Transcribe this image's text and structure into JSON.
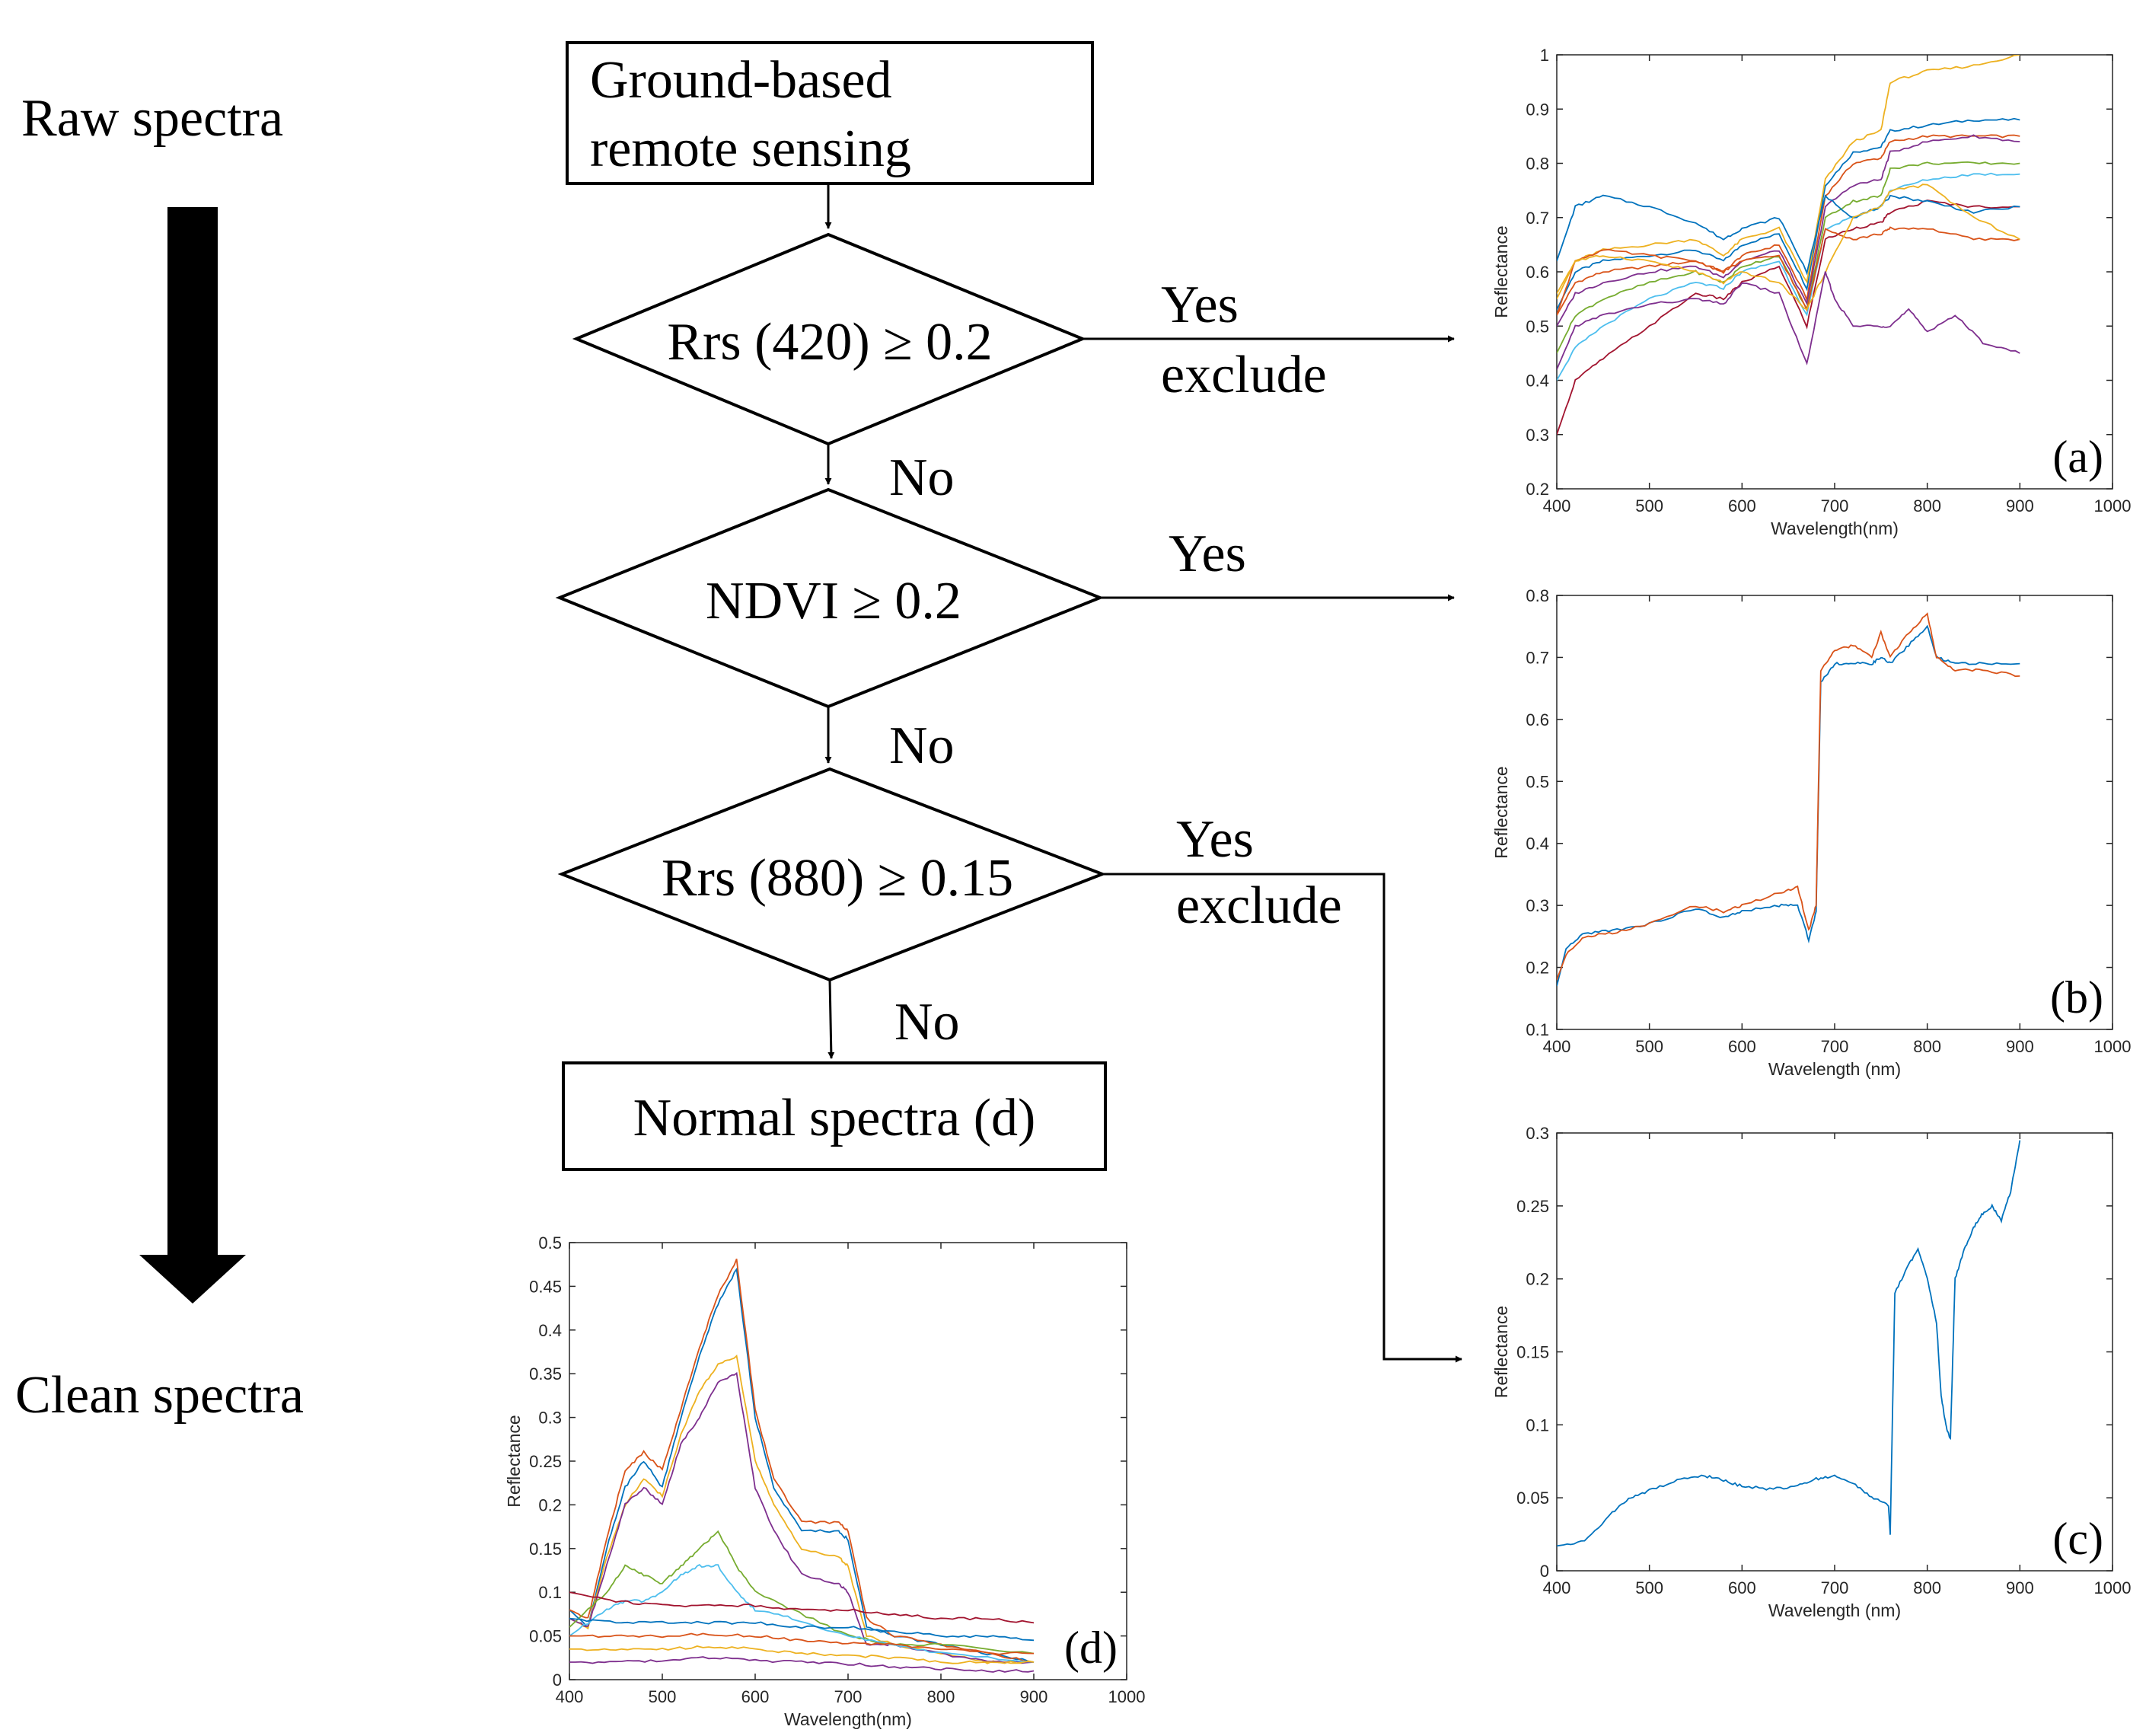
{
  "side": {
    "top_label": "Raw spectra",
    "bottom_label": "Clean spectra"
  },
  "flow": {
    "start": [
      "Ground-based",
      "remote sensing"
    ],
    "decision1": "Rrs (420) ≥ 0.2",
    "decision2": "NDVI ≥ 0.2",
    "decision3": "Rrs (880) ≥ 0.15",
    "end": "Normal spectra (d)",
    "yes1": "Yes",
    "exclude1": "exclude",
    "yes2": "Yes",
    "yes3": "Yes",
    "exclude3": "exclude",
    "no1": "No",
    "no2": "No",
    "no3": "No"
  },
  "colors": {
    "line": "#000000",
    "axis": "#262626",
    "palette": [
      "#0072BD",
      "#D95319",
      "#EDB120",
      "#7E2F8E",
      "#77AC30",
      "#4DBEEE",
      "#A2142F"
    ]
  },
  "chart_data": [
    {
      "id": "a",
      "type": "line",
      "panel_label": "(a)",
      "xlabel": "Wavelength(nm)",
      "ylabel": "Reflectance",
      "xlim": [
        400,
        1000
      ],
      "ylim": [
        0.2,
        1
      ],
      "xticks": [
        400,
        500,
        600,
        700,
        800,
        900,
        1000
      ],
      "yticks": [
        "0.2",
        "0.3",
        "0.4",
        "0.5",
        "0.6",
        "0.7",
        "0.8",
        "0.9",
        "1"
      ],
      "series": [
        {
          "x": [
            400,
            420,
            450,
            500,
            550,
            580,
            600,
            640,
            670,
            690,
            720,
            750,
            760,
            800,
            850,
            900
          ],
          "y": [
            0.53,
            0.6,
            0.62,
            0.63,
            0.64,
            0.62,
            0.65,
            0.67,
            0.57,
            0.76,
            0.82,
            0.83,
            0.86,
            0.87,
            0.88,
            0.88
          ]
        },
        {
          "x": [
            400,
            420,
            450,
            500,
            550,
            580,
            600,
            640,
            670,
            690,
            720,
            750,
            760,
            800,
            850,
            900
          ],
          "y": [
            0.52,
            0.58,
            0.6,
            0.61,
            0.62,
            0.6,
            0.63,
            0.65,
            0.55,
            0.74,
            0.8,
            0.81,
            0.84,
            0.85,
            0.85,
            0.85
          ]
        },
        {
          "x": [
            400,
            420,
            450,
            500,
            550,
            580,
            600,
            640,
            670,
            690,
            720,
            750,
            760,
            800,
            850,
            900
          ],
          "y": [
            0.55,
            0.62,
            0.64,
            0.65,
            0.66,
            0.63,
            0.66,
            0.68,
            0.58,
            0.77,
            0.84,
            0.86,
            0.95,
            0.97,
            0.98,
            1.0
          ]
        },
        {
          "x": [
            400,
            420,
            450,
            500,
            550,
            580,
            600,
            640,
            670,
            690,
            720,
            750,
            760,
            800,
            850,
            900
          ],
          "y": [
            0.5,
            0.56,
            0.58,
            0.6,
            0.61,
            0.59,
            0.62,
            0.64,
            0.54,
            0.72,
            0.76,
            0.77,
            0.82,
            0.84,
            0.85,
            0.84
          ]
        },
        {
          "x": [
            400,
            420,
            450,
            500,
            550,
            580,
            600,
            640,
            670,
            690,
            720,
            750,
            760,
            800,
            850,
            900
          ],
          "y": [
            0.45,
            0.52,
            0.55,
            0.58,
            0.6,
            0.58,
            0.61,
            0.63,
            0.53,
            0.7,
            0.73,
            0.74,
            0.79,
            0.8,
            0.8,
            0.8
          ]
        },
        {
          "x": [
            400,
            420,
            450,
            500,
            550,
            580,
            600,
            640,
            670,
            690,
            720,
            750,
            760,
            800,
            850,
            900
          ],
          "y": [
            0.4,
            0.46,
            0.5,
            0.55,
            0.58,
            0.57,
            0.6,
            0.62,
            0.52,
            0.68,
            0.7,
            0.72,
            0.75,
            0.77,
            0.78,
            0.78
          ]
        },
        {
          "x": [
            400,
            420,
            450,
            500,
            550,
            580,
            600,
            640,
            670,
            690,
            720,
            750,
            760,
            800,
            850,
            900
          ],
          "y": [
            0.3,
            0.4,
            0.44,
            0.5,
            0.56,
            0.55,
            0.58,
            0.61,
            0.5,
            0.66,
            0.68,
            0.69,
            0.71,
            0.73,
            0.72,
            0.72
          ]
        },
        {
          "x": [
            400,
            420,
            450,
            500,
            550,
            580,
            600,
            640,
            670,
            690,
            720,
            750,
            760,
            800,
            850,
            900
          ],
          "y": [
            0.62,
            0.72,
            0.74,
            0.72,
            0.69,
            0.66,
            0.68,
            0.7,
            0.6,
            0.74,
            0.7,
            0.72,
            0.74,
            0.73,
            0.71,
            0.72
          ]
        },
        {
          "x": [
            400,
            420,
            450,
            500,
            550,
            580,
            600,
            640,
            670,
            690,
            720,
            750,
            760,
            800,
            850,
            900
          ],
          "y": [
            0.52,
            0.62,
            0.64,
            0.63,
            0.62,
            0.6,
            0.62,
            0.63,
            0.53,
            0.68,
            0.66,
            0.67,
            0.68,
            0.68,
            0.66,
            0.66
          ]
        },
        {
          "x": [
            400,
            420,
            450,
            500,
            550,
            580,
            600,
            640,
            670,
            690,
            720,
            750,
            760,
            800,
            850,
            900
          ],
          "y": [
            0.56,
            0.62,
            0.63,
            0.62,
            0.6,
            0.58,
            0.6,
            0.58,
            0.53,
            0.6,
            0.7,
            0.72,
            0.75,
            0.76,
            0.7,
            0.66
          ]
        },
        {
          "x": [
            400,
            420,
            450,
            500,
            550,
            580,
            600,
            640,
            670,
            690,
            700,
            720,
            750,
            760,
            780,
            800,
            830,
            860,
            900
          ],
          "y": [
            0.42,
            0.5,
            0.52,
            0.54,
            0.55,
            0.54,
            0.58,
            0.56,
            0.43,
            0.6,
            0.55,
            0.5,
            0.5,
            0.5,
            0.53,
            0.49,
            0.52,
            0.47,
            0.45
          ]
        }
      ]
    },
    {
      "id": "b",
      "type": "line",
      "panel_label": "(b)",
      "xlabel": "Wavelength (nm)",
      "ylabel": "Reflectance",
      "xlim": [
        400,
        1000
      ],
      "ylim": [
        0.1,
        0.8
      ],
      "xticks": [
        400,
        500,
        600,
        700,
        800,
        900,
        1000
      ],
      "yticks": [
        "0.1",
        "0.2",
        "0.3",
        "0.4",
        "0.5",
        "0.6",
        "0.7",
        "0.8"
      ],
      "series": [
        {
          "x": [
            400,
            410,
            430,
            460,
            500,
            550,
            580,
            600,
            640,
            660,
            672,
            680,
            685,
            700,
            720,
            740,
            750,
            760,
            780,
            800,
            810,
            830,
            860,
            900
          ],
          "y": [
            0.17,
            0.23,
            0.255,
            0.26,
            0.27,
            0.295,
            0.28,
            0.29,
            0.3,
            0.3,
            0.245,
            0.29,
            0.66,
            0.69,
            0.69,
            0.69,
            0.7,
            0.69,
            0.72,
            0.75,
            0.7,
            0.69,
            0.69,
            0.69
          ]
        },
        {
          "x": [
            400,
            410,
            430,
            460,
            500,
            550,
            580,
            600,
            640,
            660,
            672,
            680,
            685,
            700,
            720,
            740,
            750,
            760,
            780,
            800,
            810,
            830,
            860,
            900
          ],
          "y": [
            0.18,
            0.22,
            0.25,
            0.255,
            0.27,
            0.3,
            0.29,
            0.3,
            0.32,
            0.33,
            0.26,
            0.3,
            0.68,
            0.71,
            0.72,
            0.7,
            0.74,
            0.7,
            0.74,
            0.77,
            0.7,
            0.68,
            0.68,
            0.67
          ]
        }
      ]
    },
    {
      "id": "c",
      "type": "line",
      "panel_label": "(c)",
      "xlabel": "Wavelength (nm)",
      "ylabel": "Reflectance",
      "xlim": [
        400,
        1000
      ],
      "ylim": [
        0,
        0.3
      ],
      "xticks": [
        400,
        500,
        600,
        700,
        800,
        900,
        1000
      ],
      "yticks": [
        "0",
        "0.05",
        "0.1",
        "0.15",
        "0.2",
        "0.25",
        "0.3"
      ],
      "series": [
        {
          "x": [
            400,
            430,
            460,
            480,
            500,
            530,
            560,
            580,
            600,
            630,
            660,
            680,
            700,
            720,
            740,
            758,
            760,
            765,
            780,
            790,
            800,
            810,
            815,
            820,
            825,
            830,
            840,
            850,
            860,
            870,
            880,
            890,
            900
          ],
          "y": [
            0.017,
            0.02,
            0.04,
            0.05,
            0.055,
            0.062,
            0.065,
            0.062,
            0.058,
            0.056,
            0.058,
            0.063,
            0.065,
            0.06,
            0.05,
            0.045,
            0.025,
            0.19,
            0.21,
            0.22,
            0.2,
            0.17,
            0.12,
            0.1,
            0.09,
            0.2,
            0.22,
            0.235,
            0.245,
            0.25,
            0.24,
            0.26,
            0.295
          ]
        }
      ]
    },
    {
      "id": "d",
      "type": "line",
      "panel_label": "(d)",
      "xlabel": "Wavelength(nm)",
      "ylabel": "Reflectance",
      "xlim": [
        400,
        1000
      ],
      "ylim": [
        0,
        0.5
      ],
      "xticks": [
        400,
        500,
        600,
        700,
        800,
        900,
        1000
      ],
      "yticks": [
        "0",
        "0.05",
        "0.1",
        "0.15",
        "0.2",
        "0.25",
        "0.3",
        "0.35",
        "0.4",
        "0.45",
        "0.5"
      ],
      "series": [
        {
          "x": [
            400,
            420,
            440,
            460,
            480,
            500,
            520,
            540,
            560,
            580,
            600,
            620,
            650,
            690,
            700,
            720,
            750,
            800,
            850,
            900
          ],
          "y": [
            0.08,
            0.06,
            0.15,
            0.22,
            0.25,
            0.22,
            0.3,
            0.37,
            0.43,
            0.47,
            0.3,
            0.22,
            0.17,
            0.17,
            0.16,
            0.06,
            0.05,
            0.04,
            0.03,
            0.02
          ]
        },
        {
          "x": [
            400,
            420,
            440,
            460,
            480,
            500,
            520,
            540,
            560,
            580,
            600,
            620,
            650,
            690,
            700,
            720,
            750,
            800,
            850,
            900
          ],
          "y": [
            0.08,
            0.07,
            0.16,
            0.24,
            0.26,
            0.24,
            0.31,
            0.38,
            0.44,
            0.48,
            0.31,
            0.23,
            0.18,
            0.18,
            0.17,
            0.07,
            0.05,
            0.04,
            0.03,
            0.02
          ]
        },
        {
          "x": [
            400,
            420,
            440,
            460,
            480,
            500,
            520,
            540,
            560,
            580,
            600,
            620,
            650,
            690,
            700,
            720,
            750,
            800,
            850,
            900
          ],
          "y": [
            0.07,
            0.06,
            0.14,
            0.2,
            0.23,
            0.21,
            0.28,
            0.33,
            0.36,
            0.37,
            0.25,
            0.2,
            0.15,
            0.14,
            0.13,
            0.05,
            0.04,
            0.03,
            0.02,
            0.02
          ]
        },
        {
          "x": [
            400,
            420,
            440,
            460,
            480,
            500,
            520,
            540,
            560,
            580,
            600,
            620,
            650,
            690,
            700,
            720,
            750,
            800,
            850,
            900
          ],
          "y": [
            0.07,
            0.06,
            0.13,
            0.2,
            0.22,
            0.2,
            0.27,
            0.3,
            0.34,
            0.35,
            0.22,
            0.17,
            0.12,
            0.11,
            0.1,
            0.04,
            0.04,
            0.03,
            0.02,
            0.02
          ]
        },
        {
          "x": [
            400,
            440,
            460,
            480,
            500,
            520,
            540,
            560,
            580,
            600,
            640,
            700,
            750,
            800,
            900
          ],
          "y": [
            0.06,
            0.1,
            0.13,
            0.12,
            0.11,
            0.13,
            0.15,
            0.17,
            0.13,
            0.1,
            0.08,
            0.05,
            0.04,
            0.04,
            0.03
          ]
        },
        {
          "x": [
            400,
            440,
            460,
            480,
            500,
            520,
            540,
            560,
            580,
            600,
            640,
            700,
            750,
            800,
            900
          ],
          "y": [
            0.05,
            0.08,
            0.09,
            0.09,
            0.1,
            0.12,
            0.13,
            0.13,
            0.1,
            0.08,
            0.07,
            0.05,
            0.04,
            0.03,
            0.02
          ]
        },
        {
          "x": [
            400,
            450,
            500,
            550,
            600,
            650,
            700,
            750,
            800,
            850,
            900
          ],
          "y": [
            0.1,
            0.09,
            0.085,
            0.085,
            0.085,
            0.08,
            0.08,
            0.075,
            0.07,
            0.07,
            0.065
          ]
        },
        {
          "x": [
            400,
            450,
            500,
            550,
            600,
            650,
            700,
            750,
            800,
            850,
            900
          ],
          "y": [
            0.07,
            0.065,
            0.065,
            0.065,
            0.065,
            0.06,
            0.06,
            0.055,
            0.05,
            0.05,
            0.045
          ]
        },
        {
          "x": [
            400,
            450,
            500,
            550,
            600,
            650,
            700,
            750,
            800,
            850,
            900
          ],
          "y": [
            0.05,
            0.05,
            0.05,
            0.052,
            0.05,
            0.045,
            0.042,
            0.04,
            0.035,
            0.03,
            0.03
          ]
        },
        {
          "x": [
            400,
            450,
            500,
            550,
            600,
            650,
            700,
            750,
            800,
            850,
            900
          ],
          "y": [
            0.035,
            0.035,
            0.035,
            0.038,
            0.035,
            0.03,
            0.028,
            0.025,
            0.02,
            0.02,
            0.02
          ]
        },
        {
          "x": [
            400,
            450,
            500,
            550,
            600,
            650,
            700,
            750,
            800,
            850,
            900
          ],
          "y": [
            0.02,
            0.02,
            0.022,
            0.025,
            0.022,
            0.02,
            0.018,
            0.015,
            0.012,
            0.01,
            0.01
          ]
        }
      ]
    }
  ]
}
